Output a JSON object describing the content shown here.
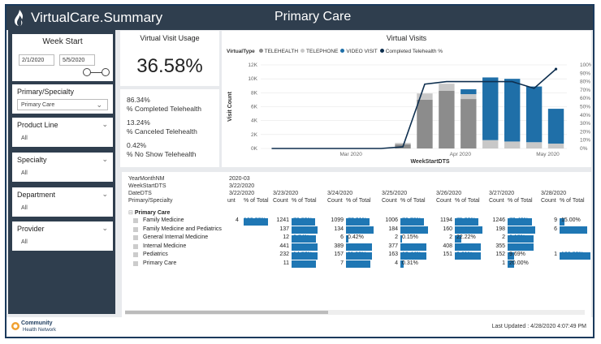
{
  "header": {
    "app_title": "VirtualCare.Summary",
    "page_title": "Primary Care"
  },
  "sidebar": {
    "week_start": {
      "title": "Week Start",
      "from": "2/1/2020",
      "to": "5/5/2020"
    },
    "slicers": [
      {
        "title": "Primary/Specialty",
        "value": "Primary Care"
      },
      {
        "title": "Product Line",
        "value": "All"
      },
      {
        "title": "Specialty",
        "value": "All"
      },
      {
        "title": "Department",
        "value": "All"
      },
      {
        "title": "Provider",
        "value": "All"
      }
    ]
  },
  "kpi": {
    "title": "Virtual Visit Usage",
    "value": "36.58%"
  },
  "stats": [
    {
      "value": "86.34%",
      "label": "% Completed Telehealth"
    },
    {
      "value": "13.24%",
      "label": "% Canceled Telehealth"
    },
    {
      "value": "0.42%",
      "label": "% No Show Telehealth"
    }
  ],
  "chart_data": {
    "type": "bar",
    "title": "Virtual Visits",
    "legend_title": "VirtualType",
    "xlabel": "WeekStartDTS",
    "ylabel": "Visit Count",
    "ylim": [
      0,
      12000
    ],
    "y2lim": [
      0,
      100
    ],
    "y_ticks": [
      "0K",
      "2K",
      "4K",
      "6K",
      "8K",
      "10K",
      "12K"
    ],
    "y2_ticks": [
      "0%",
      "10%",
      "20%",
      "30%",
      "40%",
      "50%",
      "60%",
      "70%",
      "80%",
      "90%",
      "100%"
    ],
    "x_ticks": [
      "Mar 2020",
      "Apr 2020",
      "May 2020"
    ],
    "categories": [
      "2020-02-02",
      "2020-02-09",
      "2020-02-16",
      "2020-02-23",
      "2020-03-01",
      "2020-03-08",
      "2020-03-15",
      "2020-03-22",
      "2020-03-29",
      "2020-04-05",
      "2020-04-12",
      "2020-04-19",
      "2020-04-26",
      "2020-05-03"
    ],
    "series": [
      {
        "name": "TELEHEALTH",
        "color": "#8c8c8c",
        "values": [
          0,
          0,
          0,
          0,
          0,
          0,
          600,
          7000,
          8300,
          7100,
          0,
          0,
          0,
          0
        ]
      },
      {
        "name": "TELEPHONE",
        "color": "#c8c8c8",
        "values": [
          0,
          0,
          0,
          0,
          0,
          0,
          200,
          900,
          1000,
          700,
          1200,
          1000,
          900,
          700
        ]
      },
      {
        "name": "VIDEO VISIT",
        "color": "#1f6fa8",
        "values": [
          0,
          0,
          0,
          0,
          0,
          0,
          0,
          0,
          0,
          700,
          9000,
          9000,
          8000,
          5000
        ]
      },
      {
        "name": "Completed Telehealth %",
        "color": "#0e2f4f",
        "type": "line",
        "axis": "y2",
        "values": [
          0,
          0,
          0,
          0,
          0,
          0,
          2,
          77,
          80,
          80,
          80,
          80,
          72,
          95
        ]
      }
    ]
  },
  "table": {
    "header_left": [
      "YearMonthNM",
      "WeekStartDTS",
      "DateDTS",
      "Primary/Specialty"
    ],
    "header_mid": [
      "2020-03",
      "3/22/2020",
      "3/22/2020"
    ],
    "date_cols": [
      "3/23/2020",
      "3/24/2020",
      "3/25/2020",
      "3/26/2020",
      "3/27/2020",
      "3/28/2020"
    ],
    "first_col_label": "unt",
    "count_label": "Count",
    "pct_label": "% of Total",
    "group": "Primary Care",
    "rows": [
      {
        "name": "Family Medicine",
        "first": "4",
        "firstPct": "100.00%",
        "firstFrac": 1.0,
        "cells": [
          [
            "1241",
            "76.89%",
            0.77
          ],
          [
            "1099",
            "77.21%",
            0.77
          ],
          [
            "1006",
            "76.76%",
            0.77
          ],
          [
            "1194",
            "75.99%",
            0.76
          ],
          [
            "1246",
            "79.48%",
            0.79
          ],
          [
            "9",
            "15.00%",
            0.15
          ]
        ]
      },
      {
        "name": "Family Medicine and Pediatrics",
        "first": "",
        "firstPct": "",
        "firstFrac": 0,
        "cells": [
          [
            "137",
            "8.49%",
            0.85
          ],
          [
            "134",
            "9.41%",
            0.9
          ],
          [
            "184",
            "11.52%",
            0.9
          ],
          [
            "160",
            "10.18%",
            0.9
          ],
          [
            "198",
            "12.63%",
            0.9
          ],
          [
            "6",
            "10.00%",
            0.9
          ]
        ]
      },
      {
        "name": "General Internal Medicine",
        "first": "",
        "firstPct": "",
        "firstFrac": 0,
        "cells": [
          [
            "12",
            "0.74%",
            0.8
          ],
          [
            "6",
            "0.42%",
            0.08
          ],
          [
            "2",
            "0.15%",
            0.05
          ],
          [
            "2",
            "22.22%",
            0.22
          ],
          [
            "2",
            "0.13%",
            0.85
          ],
          [
            "",
            "",
            0
          ]
        ]
      },
      {
        "name": "Internal Medicine",
        "first": "",
        "firstPct": "",
        "firstFrac": 0,
        "cells": [
          [
            "441",
            "27.32%",
            0.85
          ],
          [
            "389",
            "27.34%",
            0.85
          ],
          [
            "377",
            "28.77%",
            0.85
          ],
          [
            "408",
            "25.97%",
            0.85
          ],
          [
            "355",
            "22.64%",
            0.85
          ],
          [
            "",
            "",
            0
          ]
        ]
      },
      {
        "name": "Pediatrics",
        "first": "",
        "firstPct": "",
        "firstFrac": 0,
        "cells": [
          [
            "232",
            "14.37%",
            0.85
          ],
          [
            "157",
            "11.03%",
            0.85
          ],
          [
            "163",
            "12.44%",
            0.85
          ],
          [
            "151",
            "9.61%",
            0.85
          ],
          [
            "152",
            "9.69%",
            0.2
          ],
          [
            "1",
            "100.00%",
            1.0
          ]
        ]
      },
      {
        "name": "Primary Care",
        "first": "",
        "firstPct": "",
        "firstFrac": 0,
        "cells": [
          [
            "11",
            "0.68%",
            0.8
          ],
          [
            "7",
            "0.49%",
            0.8
          ],
          [
            "4",
            "0.31%",
            0.1
          ],
          [
            "",
            "",
            0
          ],
          [
            "1",
            "20.00%",
            0.2
          ],
          [
            "",
            "",
            0
          ]
        ]
      }
    ]
  },
  "footer": {
    "brand_line1": "Community",
    "brand_line2": "Health Network",
    "updated": "Last Updated : 4/28/2020 4:07:49 PM"
  },
  "colors": {
    "header_bg": "#2f3e4e",
    "accent": "#1f77b4"
  }
}
